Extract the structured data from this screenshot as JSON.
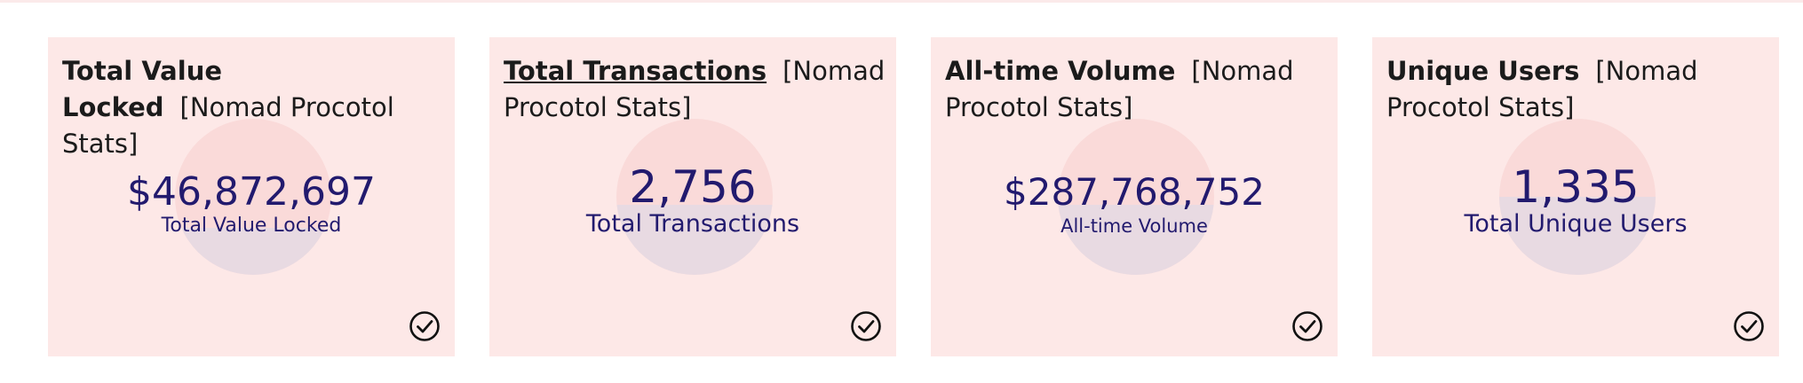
{
  "cards": [
    {
      "title": "Total Value Locked",
      "subtitle": "[Nomad Procotol Stats]",
      "value": "$46,872,697",
      "label": "Total Value Locked",
      "progress": 0.3,
      "status_icon": "check-circle-icon"
    },
    {
      "title": "Total Transactions",
      "subtitle": "[Nomad Procotol Stats]",
      "value": "2,756",
      "label": "Total Transactions",
      "progress": 0.45,
      "status_icon": "check-circle-icon"
    },
    {
      "title": "All-time Volume",
      "subtitle": "[Nomad Procotol Stats]",
      "value": "$287,768,752",
      "label": "All-time Volume",
      "progress": 0.45,
      "status_icon": "check-circle-icon"
    },
    {
      "title": "Unique Users",
      "subtitle": "[Nomad Procotol Stats]",
      "value": "1,335",
      "label": "Total Unique Users",
      "progress": 0.5,
      "status_icon": "check-circle-icon"
    }
  ],
  "colors": {
    "card_background": "#fde8e7",
    "circle_background": "#fadad9",
    "circle_fill": "#e8dae2",
    "metric_text": "#221a6e"
  }
}
